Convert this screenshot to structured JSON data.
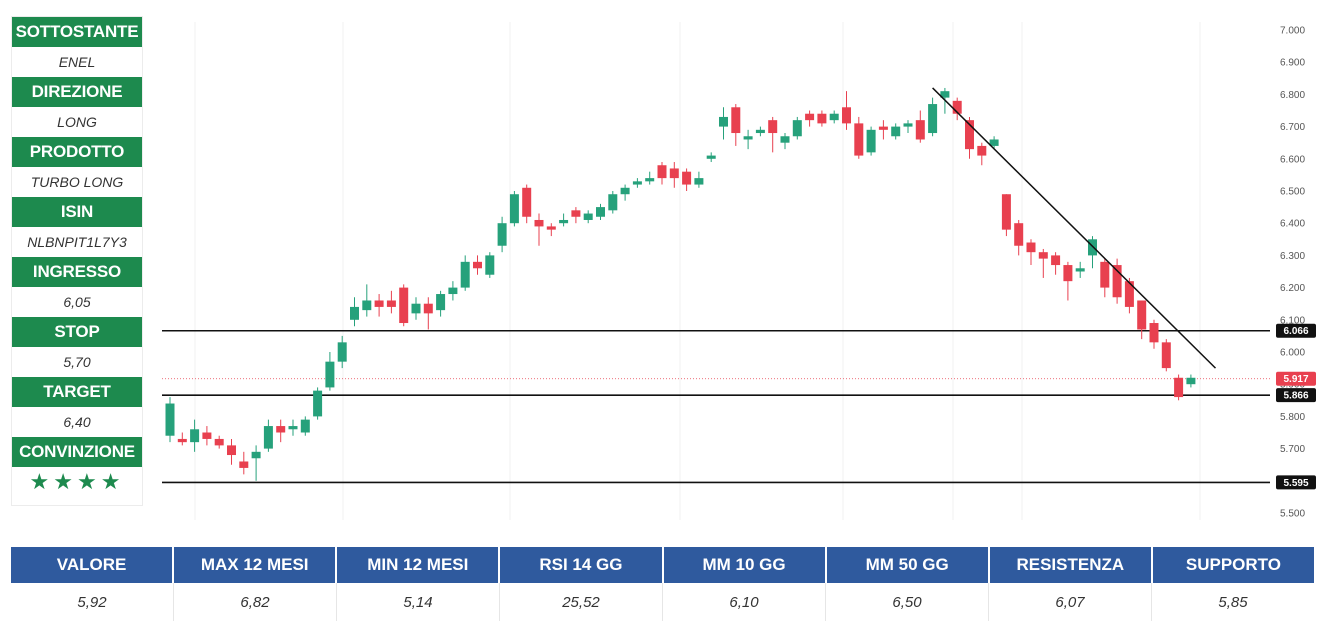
{
  "panel": {
    "rows": [
      {
        "label": "SOTTOSTANTE",
        "value": "ENEL"
      },
      {
        "label": "DIREZIONE",
        "value": "LONG"
      },
      {
        "label": "PRODOTTO",
        "value": "TURBO LONG"
      },
      {
        "label": "ISIN",
        "value": "NLBNPIT1L7Y3"
      },
      {
        "label": "INGRESSO",
        "value": "6,05"
      },
      {
        "label": "STOP",
        "value": "5,70"
      },
      {
        "label": "TARGET",
        "value": "6,40"
      },
      {
        "label": "CONVINZIONE",
        "value": "★★★★"
      }
    ]
  },
  "colors": {
    "label_bg": "#1d8a4e",
    "header_bg": "#2f5a9e",
    "up_candle": "#26a17b",
    "down_candle": "#e8404f",
    "price_tag": "#e8404f",
    "level_tag": "#111111"
  },
  "chart_data": {
    "type": "candlestick",
    "title": "",
    "xlabel": "",
    "ylabel": "",
    "ylim": [
      5.5,
      7.0
    ],
    "y_ticks": [
      "5.500",
      "5.600",
      "5.700",
      "5.800",
      "5.900",
      "6.000",
      "6.100",
      "6.200",
      "6.300",
      "6.400",
      "6.500",
      "6.600",
      "6.700",
      "6.800",
      "6.900",
      "7.000"
    ],
    "grid": false,
    "candles": [
      [
        5.74,
        5.84,
        5.72,
        5.86
      ],
      [
        5.73,
        5.72,
        5.71,
        5.75
      ],
      [
        5.72,
        5.76,
        5.69,
        5.79
      ],
      [
        5.75,
        5.73,
        5.71,
        5.77
      ],
      [
        5.73,
        5.71,
        5.7,
        5.74
      ],
      [
        5.71,
        5.68,
        5.65,
        5.73
      ],
      [
        5.66,
        5.64,
        5.62,
        5.69
      ],
      [
        5.67,
        5.69,
        5.6,
        5.71
      ],
      [
        5.7,
        5.77,
        5.69,
        5.79
      ],
      [
        5.77,
        5.75,
        5.72,
        5.79
      ],
      [
        5.76,
        5.77,
        5.74,
        5.79
      ],
      [
        5.75,
        5.79,
        5.74,
        5.8
      ],
      [
        5.8,
        5.88,
        5.79,
        5.89
      ],
      [
        5.89,
        5.97,
        5.88,
        6.0
      ],
      [
        5.97,
        6.03,
        5.95,
        6.05
      ],
      [
        6.1,
        6.14,
        6.08,
        6.17
      ],
      [
        6.13,
        6.16,
        6.11,
        6.21
      ],
      [
        6.16,
        6.14,
        6.11,
        6.18
      ],
      [
        6.16,
        6.14,
        6.12,
        6.19
      ],
      [
        6.2,
        6.09,
        6.08,
        6.21
      ],
      [
        6.12,
        6.15,
        6.1,
        6.17
      ],
      [
        6.15,
        6.12,
        6.07,
        6.17
      ],
      [
        6.13,
        6.18,
        6.11,
        6.19
      ],
      [
        6.18,
        6.2,
        6.16,
        6.22
      ],
      [
        6.2,
        6.28,
        6.19,
        6.3
      ],
      [
        6.28,
        6.26,
        6.24,
        6.3
      ],
      [
        6.24,
        6.3,
        6.23,
        6.31
      ],
      [
        6.33,
        6.4,
        6.31,
        6.42
      ],
      [
        6.4,
        6.49,
        6.39,
        6.5
      ],
      [
        6.51,
        6.42,
        6.4,
        6.52
      ],
      [
        6.41,
        6.39,
        6.33,
        6.43
      ],
      [
        6.39,
        6.38,
        6.36,
        6.4
      ],
      [
        6.4,
        6.41,
        6.39,
        6.43
      ],
      [
        6.44,
        6.42,
        6.4,
        6.45
      ],
      [
        6.41,
        6.43,
        6.4,
        6.44
      ],
      [
        6.42,
        6.45,
        6.41,
        6.46
      ],
      [
        6.44,
        6.49,
        6.43,
        6.5
      ],
      [
        6.49,
        6.51,
        6.47,
        6.52
      ],
      [
        6.52,
        6.53,
        6.51,
        6.54
      ],
      [
        6.53,
        6.54,
        6.52,
        6.56
      ],
      [
        6.58,
        6.54,
        6.52,
        6.59
      ],
      [
        6.57,
        6.54,
        6.51,
        6.59
      ],
      [
        6.56,
        6.52,
        6.5,
        6.57
      ],
      [
        6.52,
        6.54,
        6.51,
        6.56
      ],
      [
        6.6,
        6.61,
        6.59,
        6.62
      ],
      [
        6.7,
        6.73,
        6.66,
        6.76
      ],
      [
        6.76,
        6.68,
        6.64,
        6.77
      ],
      [
        6.66,
        6.67,
        6.63,
        6.69
      ],
      [
        6.68,
        6.69,
        6.67,
        6.7
      ],
      [
        6.72,
        6.68,
        6.62,
        6.73
      ],
      [
        6.65,
        6.67,
        6.63,
        6.68
      ],
      [
        6.67,
        6.72,
        6.66,
        6.73
      ],
      [
        6.74,
        6.72,
        6.7,
        6.75
      ],
      [
        6.74,
        6.71,
        6.7,
        6.75
      ],
      [
        6.72,
        6.74,
        6.71,
        6.75
      ],
      [
        6.76,
        6.71,
        6.69,
        6.81
      ],
      [
        6.71,
        6.61,
        6.6,
        6.73
      ],
      [
        6.62,
        6.69,
        6.61,
        6.7
      ],
      [
        6.7,
        6.69,
        6.66,
        6.72
      ],
      [
        6.67,
        6.7,
        6.66,
        6.71
      ],
      [
        6.7,
        6.71,
        6.68,
        6.72
      ],
      [
        6.72,
        6.66,
        6.65,
        6.75
      ],
      [
        6.68,
        6.77,
        6.67,
        6.79
      ],
      [
        6.79,
        6.81,
        6.74,
        6.82
      ],
      [
        6.78,
        6.74,
        6.72,
        6.79
      ],
      [
        6.72,
        6.63,
        6.6,
        6.73
      ],
      [
        6.64,
        6.61,
        6.58,
        6.65
      ],
      [
        6.64,
        6.66,
        6.63,
        6.67
      ],
      [
        6.49,
        6.38,
        6.36,
        6.49
      ],
      [
        6.4,
        6.33,
        6.3,
        6.41
      ],
      [
        6.34,
        6.31,
        6.27,
        6.35
      ],
      [
        6.31,
        6.29,
        6.23,
        6.32
      ],
      [
        6.3,
        6.27,
        6.24,
        6.31
      ],
      [
        6.27,
        6.22,
        6.16,
        6.28
      ],
      [
        6.25,
        6.26,
        6.23,
        6.28
      ],
      [
        6.3,
        6.35,
        6.26,
        6.36
      ],
      [
        6.28,
        6.2,
        6.17,
        6.29
      ],
      [
        6.27,
        6.17,
        6.15,
        6.29
      ],
      [
        6.22,
        6.14,
        6.12,
        6.23
      ],
      [
        6.16,
        6.07,
        6.04,
        6.16
      ],
      [
        6.09,
        6.03,
        6.01,
        6.1
      ],
      [
        6.03,
        5.95,
        5.94,
        6.04
      ],
      [
        5.92,
        5.86,
        5.85,
        5.93
      ],
      [
        5.9,
        5.92,
        5.89,
        5.93
      ]
    ],
    "horizontal_levels": [
      {
        "value": 6.066,
        "label": "6.066"
      },
      {
        "value": 5.866,
        "label": "5.866"
      },
      {
        "value": 5.595,
        "label": "5.595"
      }
    ],
    "last_price": {
      "value": 5.917,
      "label": "5.917"
    },
    "trendline": {
      "from": [
        6.82,
        62
      ],
      "to": [
        5.95,
        85
      ]
    }
  },
  "table": {
    "headers": [
      "VALORE",
      "MAX 12 MESI",
      "MIN 12 MESI",
      "RSI 14 GG",
      "MM 10 GG",
      "MM 50 GG",
      "RESISTENZA",
      "SUPPORTO"
    ],
    "values": [
      "5,92",
      "6,82",
      "5,14",
      "25,52",
      "6,10",
      "6,50",
      "6,07",
      "5,85"
    ]
  }
}
